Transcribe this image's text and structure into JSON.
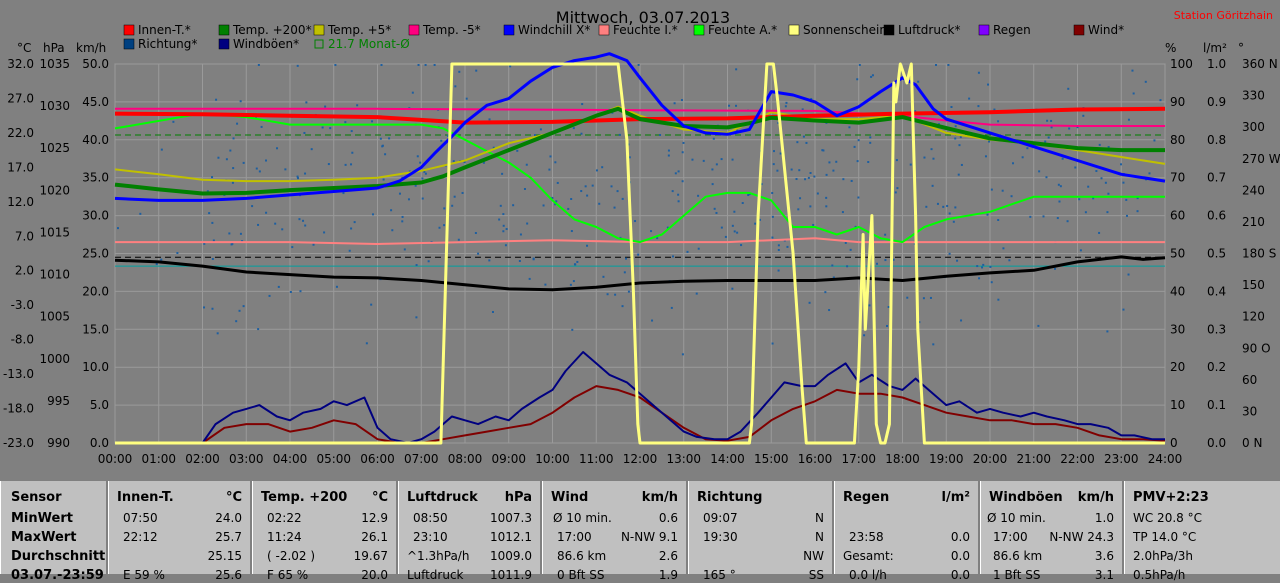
{
  "chart_data": {
    "type": "line",
    "title": "Mittwoch, 03.07.2013",
    "station": "Station Göritzhain",
    "x_ticks": [
      "00:00",
      "01:00",
      "02:00",
      "03:00",
      "04:00",
      "05:00",
      "06:00",
      "07:00",
      "08:00",
      "09:00",
      "10:00",
      "11:00",
      "12:00",
      "13:00",
      "14:00",
      "15:00",
      "16:00",
      "17:00",
      "18:00",
      "19:00",
      "20:00",
      "21:00",
      "22:00",
      "23:00",
      "24:00"
    ],
    "axis_units": {
      "temp": "°C",
      "pressure": "hPa",
      "wind": "km/h",
      "percent": "%",
      "rain": "l/m²",
      "dir": "°"
    },
    "temp_ticks": [
      "32.0",
      "27.0",
      "22.0",
      "17.0",
      "12.0",
      "7.0",
      "2.0",
      "-3.0",
      "-8.0",
      "-13.0",
      "-18.0",
      "-23.0"
    ],
    "pressure_ticks": [
      "1035",
      "1030",
      "1025",
      "1020",
      "1015",
      "1010",
      "1005",
      "1000",
      "995",
      "990"
    ],
    "wind_ticks": [
      "50.0",
      "45.0",
      "40.0",
      "35.0",
      "30.0",
      "25.0",
      "20.0",
      "15.0",
      "10.0",
      "5.0",
      "0.0"
    ],
    "percent_ticks": [
      "100",
      "90",
      "80",
      "70",
      "60",
      "50",
      "40",
      "30",
      "20",
      "10",
      "0"
    ],
    "rain_ticks": [
      "1.0",
      "0.9",
      "0.8",
      "0.7",
      "0.6",
      "0.5",
      "0.4",
      "0.3",
      "0.2",
      "0.1",
      "0.0"
    ],
    "dir_ticks": [
      "360 N",
      "330",
      "300",
      "270 W",
      "240",
      "210",
      "180 S",
      "150",
      "120",
      "90 O",
      "60",
      "30",
      "0 N"
    ],
    "temp_range": [
      -23,
      32
    ],
    "legend": [
      {
        "label": "Innen-T.*",
        "color": "#ff0000"
      },
      {
        "label": "Temp. +200*",
        "color": "#008000"
      },
      {
        "label": "Temp. +5*",
        "color": "#c0c000"
      },
      {
        "label": "Temp. -5*",
        "color": "#ff0080"
      },
      {
        "label": "Windchill X*",
        "color": "#0000ff"
      },
      {
        "label": "Feuchte I.*",
        "color": "#ff8080"
      },
      {
        "label": "Feuchte A.*",
        "color": "#00ff00"
      },
      {
        "label": "Sonnenschein",
        "color": "#ffff80"
      },
      {
        "label": "Luftdruck*",
        "color": "#000000"
      },
      {
        "label": "Regen",
        "color": "#8000ff"
      },
      {
        "label": "Wind*",
        "color": "#800000"
      },
      {
        "label": "Richtung*",
        "color": "#004080"
      },
      {
        "label": "Windböen*",
        "color": "#000080"
      },
      {
        "label": "21.7 Monat-Ø",
        "color": "#008000"
      }
    ],
    "series": [
      {
        "name": "Innen-T.*",
        "axis": "temp",
        "color": "#ff0000",
        "width": 4,
        "x": [
          0,
          2,
          4,
          6,
          8,
          10,
          12,
          14,
          16,
          18,
          20,
          22,
          24
        ],
        "y": [
          24.8,
          24.7,
          24.5,
          24.3,
          23.5,
          23.6,
          24.0,
          24.1,
          24.5,
          24.8,
          25.0,
          25.4,
          25.5
        ]
      },
      {
        "name": "Temp. +200*",
        "axis": "temp",
        "color": "#008000",
        "width": 4,
        "x": [
          0,
          1,
          2,
          3,
          4,
          5,
          6,
          7,
          7.5,
          8,
          9,
          10,
          11,
          11.5,
          12,
          13,
          14,
          14.5,
          15,
          16,
          17,
          18,
          19,
          20,
          21,
          22,
          23,
          24
        ],
        "y": [
          14.5,
          13.8,
          13.2,
          13.3,
          13.7,
          14.0,
          14.3,
          14.8,
          15.7,
          17.0,
          19.5,
          22.0,
          24.5,
          25.5,
          24.0,
          23.0,
          22.8,
          23.4,
          24.2,
          23.8,
          23.5,
          24.3,
          22.7,
          21.2,
          20.5,
          19.8,
          19.5,
          19.5
        ]
      },
      {
        "name": "Temp. +5*",
        "axis": "temp",
        "color": "#c0c000",
        "width": 2,
        "x": [
          0,
          1,
          2,
          3,
          4,
          5,
          6,
          7,
          8,
          9,
          10,
          11,
          11.5,
          12,
          13,
          14,
          15,
          16,
          17,
          18,
          19,
          20,
          21,
          22,
          23,
          24
        ],
        "y": [
          16.7,
          16.0,
          15.2,
          15.0,
          15.0,
          15.2,
          15.5,
          16.5,
          18.0,
          20.5,
          22.0,
          24.5,
          25.8,
          24.5,
          22.5,
          22.0,
          25.0,
          24.0,
          24.0,
          24.5,
          22.0,
          21.0,
          20.5,
          19.5,
          18.5,
          17.5
        ]
      },
      {
        "name": "Temp. -5*",
        "axis": "temp",
        "color": "#ff0080",
        "width": 2,
        "x": [
          0,
          6,
          12,
          16,
          18,
          19,
          20,
          22,
          24
        ],
        "y": [
          25.5,
          25.5,
          25.3,
          25.2,
          24.5,
          23.8,
          23.2,
          23.0,
          23.0
        ]
      },
      {
        "name": "Windchill X*",
        "axis": "temp",
        "color": "#0000ff",
        "width": 3,
        "x": [
          0,
          1,
          2,
          3,
          4,
          5,
          6,
          6.5,
          7,
          7.3,
          7.7,
          8,
          8.5,
          9,
          9.5,
          10,
          10.5,
          11,
          11.3,
          11.7,
          12,
          12.5,
          13,
          13.5,
          14,
          14.5,
          15,
          15.5,
          16,
          16.5,
          17,
          17.5,
          18,
          18.3,
          18.7,
          19,
          20,
          21,
          22,
          23,
          24
        ],
        "y": [
          12.5,
          12.2,
          12.2,
          12.5,
          13.0,
          13.5,
          14.0,
          15.0,
          17.0,
          19.0,
          21.5,
          23.5,
          26.0,
          27.0,
          29.5,
          31.5,
          32.5,
          33.0,
          33.5,
          32.5,
          30.0,
          26.0,
          23.0,
          22.0,
          21.8,
          22.5,
          28.0,
          27.5,
          26.5,
          24.5,
          25.8,
          28.0,
          30.0,
          29.0,
          25.5,
          24.0,
          22.0,
          20.0,
          18.0,
          16.0,
          15.0
        ]
      },
      {
        "name": "Feuchte I.*",
        "axis": "percent",
        "color": "#ff8080",
        "width": 2,
        "x": [
          0,
          4,
          6,
          8,
          10,
          12,
          14,
          16,
          17,
          18,
          20,
          24
        ],
        "y": [
          53,
          53,
          52.5,
          53,
          53.5,
          53,
          53,
          54,
          53,
          53,
          53,
          53
        ]
      },
      {
        "name": "Feuchte A.*",
        "axis": "percent",
        "color": "#00ff00",
        "width": 2,
        "x": [
          0,
          1,
          2,
          3,
          4,
          5,
          6,
          7,
          7.5,
          8,
          8.5,
          9,
          9.5,
          10,
          10.5,
          11,
          11.5,
          12,
          12.5,
          13,
          13.5,
          14,
          14.5,
          15,
          15.5,
          16,
          16.5,
          17,
          17.5,
          18,
          18.5,
          19,
          20,
          21,
          22,
          23,
          24
        ],
        "y": [
          83,
          85,
          87,
          86,
          84,
          84,
          84,
          84,
          83,
          80,
          77,
          74,
          70,
          64,
          59,
          57,
          54,
          53,
          55,
          60,
          65,
          66,
          66,
          64,
          57,
          57,
          55,
          57,
          54,
          53,
          57,
          59,
          61,
          65,
          65,
          65,
          65
        ]
      },
      {
        "name": "Luftdruck*",
        "axis": "pressure",
        "color": "#000000",
        "width": 3,
        "x": [
          0,
          1,
          2,
          3,
          4,
          5,
          6,
          7,
          8,
          9,
          10,
          11,
          12,
          13,
          14,
          15,
          16,
          17,
          18,
          19,
          20,
          21,
          22,
          23,
          23.5,
          24
        ],
        "y": [
          1011.7,
          1011.5,
          1011.0,
          1010.3,
          1010.0,
          1009.7,
          1009.6,
          1009.3,
          1008.8,
          1008.3,
          1008.2,
          1008.5,
          1009.0,
          1009.2,
          1009.3,
          1009.3,
          1009.3,
          1009.6,
          1009.3,
          1009.8,
          1010.2,
          1010.5,
          1011.5,
          1012.1,
          1011.8,
          1012.0
        ]
      },
      {
        "name": "Wind*",
        "axis": "wind",
        "color": "#800000",
        "width": 2,
        "x": [
          0,
          2,
          2.5,
          3,
          3.5,
          4,
          4.5,
          5,
          5.5,
          6,
          6.5,
          7,
          7.5,
          8,
          8.5,
          9,
          9.5,
          10,
          10.5,
          11,
          11.5,
          12,
          12.5,
          13,
          13.5,
          14,
          14.5,
          15,
          15.5,
          16,
          16.5,
          17,
          17.5,
          18,
          18.5,
          19,
          19.5,
          20,
          20.5,
          21,
          21.5,
          22,
          22.5,
          23,
          23.5,
          24
        ],
        "y": [
          0,
          0,
          2,
          2.5,
          2.5,
          1.5,
          2.0,
          3.0,
          2.5,
          0.5,
          0,
          0,
          0.5,
          1.0,
          1.5,
          2.0,
          2.5,
          4.0,
          6.0,
          7.5,
          7.0,
          6.0,
          4.0,
          2.0,
          0.5,
          0.3,
          0.8,
          3.0,
          4.5,
          5.5,
          7.0,
          6.5,
          6.5,
          6.0,
          5.0,
          4.0,
          3.5,
          3.0,
          3.0,
          2.5,
          2.5,
          2.0,
          1.0,
          0.5,
          0.5,
          0.3
        ]
      },
      {
        "name": "Windböen*",
        "axis": "wind",
        "color": "#000080",
        "width": 2,
        "x": [
          0,
          2,
          2.3,
          2.7,
          3,
          3.3,
          3.7,
          4,
          4.3,
          4.7,
          5,
          5.3,
          5.7,
          6,
          6.3,
          6.7,
          7,
          7.3,
          7.7,
          8,
          8.3,
          8.7,
          9,
          9.3,
          9.7,
          10,
          10.3,
          10.7,
          11,
          11.3,
          11.7,
          12,
          12.3,
          12.7,
          13,
          13.3,
          13.7,
          14,
          14.3,
          14.7,
          15,
          15.3,
          15.7,
          16,
          16.3,
          16.7,
          17,
          17.3,
          17.7,
          18,
          18.3,
          18.7,
          19,
          19.3,
          19.7,
          20,
          20.3,
          20.7,
          21,
          21.3,
          21.7,
          22,
          22.3,
          22.7,
          23,
          23.3,
          23.7,
          24
        ],
        "y": [
          0,
          0,
          2.5,
          4.0,
          4.5,
          5.0,
          3.5,
          3.0,
          4.0,
          4.5,
          5.5,
          5.0,
          6.0,
          2.0,
          0.5,
          0,
          0.5,
          1.5,
          3.5,
          3.0,
          2.5,
          3.5,
          3.0,
          4.5,
          6.0,
          7.0,
          9.5,
          12.0,
          10.5,
          9.0,
          8.0,
          6.5,
          5.0,
          3.0,
          1.5,
          0.8,
          0.5,
          0.5,
          1.5,
          4.0,
          6.0,
          8.0,
          7.5,
          7.5,
          9.0,
          10.5,
          8.0,
          9.0,
          7.5,
          7.0,
          8.5,
          6.5,
          5.0,
          5.5,
          4.0,
          4.5,
          4.0,
          3.5,
          4.0,
          3.5,
          3.0,
          2.5,
          2.5,
          2.0,
          1.0,
          1.0,
          0.5,
          0.5
        ]
      },
      {
        "name": "Sonnenschein",
        "axis": "percent",
        "color": "#ffff80",
        "width": 3,
        "x": [
          0,
          7.45,
          7.7,
          8,
          11,
          11.5,
          11.7,
          11.85,
          11.95,
          12,
          14.5,
          14.55,
          14.7,
          14.9,
          15.05,
          15.15,
          15.5,
          15.7,
          15.8,
          16,
          16.9,
          17.0,
          17.1,
          17.15,
          17.3,
          17.4,
          17.5,
          17.6,
          17.7,
          17.8,
          17.85,
          17.95,
          18.1,
          18.2,
          18.3,
          18.35,
          18.5,
          24
        ],
        "y": [
          0,
          0,
          100,
          100,
          100,
          100,
          80,
          40,
          5,
          0,
          0,
          5,
          60,
          100,
          100,
          90,
          50,
          15,
          0,
          0,
          0,
          20,
          55,
          30,
          60,
          5,
          0,
          0,
          5,
          95,
          90,
          100,
          95,
          100,
          60,
          30,
          0,
          0
        ]
      }
    ],
    "reference_lines": [
      {
        "axis": "temp",
        "value": 21.7,
        "color": "#008000",
        "dash": "6,4",
        "name": "21.7 Monat-Ø"
      },
      {
        "axis": "wind",
        "value": 24.5,
        "color": "#000000",
        "dash": "6,4"
      },
      {
        "axis": "pressure",
        "value": 1011.0,
        "color": "#00a0a0",
        "dash": ""
      }
    ],
    "direction_scatter": {
      "color": "#1e5fa0",
      "degrees_center": 240,
      "spread": 120
    }
  },
  "panel": {
    "row_labels": [
      "Sensor",
      "MinWert",
      "MaxWert",
      "Durchschnitt",
      "03.07.-23:59"
    ],
    "innen": {
      "title": "Innen-T.",
      "unit": "°C",
      "rows": [
        [
          "07:50",
          "24.0"
        ],
        [
          "22:12",
          "25.7"
        ],
        [
          "",
          "25.15"
        ],
        [
          "E 59 %",
          "25.6"
        ]
      ]
    },
    "temp": {
      "title": "Temp. +200",
      "unit": "°C",
      "rows": [
        [
          "02:22",
          "12.9"
        ],
        [
          "11:24",
          "26.1"
        ],
        [
          "( -2.02 )",
          "19.67"
        ],
        [
          "F 65 %",
          "20.0"
        ]
      ]
    },
    "luft": {
      "title": "Luftdruck",
      "unit": "hPa",
      "rows": [
        [
          "08:50",
          "1007.3"
        ],
        [
          "23:10",
          "1012.1"
        ],
        [
          "^1.3hPa/h",
          "1009.0"
        ],
        [
          "Luftdruck",
          "1011.9"
        ]
      ]
    },
    "wind": {
      "title": "Wind",
      "unit": "km/h",
      "rows": [
        [
          "Ø 10 min.",
          "",
          "0.6"
        ],
        [
          "17:00",
          "N-NW 9.1",
          ""
        ],
        [
          "86.6 km",
          "",
          "2.6"
        ],
        [
          "0 Bft SS",
          "",
          "1.9"
        ]
      ]
    },
    "richt": {
      "title": "Richtung",
      "rows": [
        [
          "09:07",
          "N"
        ],
        [
          "19:30",
          "N"
        ],
        [
          "",
          "NW"
        ],
        [
          "165 °",
          "SS"
        ]
      ]
    },
    "regen": {
      "title": "Regen",
      "unit": "l/m²",
      "rows": [
        [
          "",
          ""
        ],
        [
          "23:58",
          "0.0"
        ],
        [
          "Gesamt:",
          "0.0"
        ],
        [
          "0.0 l/h",
          "0.0"
        ]
      ]
    },
    "boen": {
      "title": "Windböen",
      "unit": "km/h",
      "rows": [
        [
          "Ø 10 min.",
          "",
          "1.0"
        ],
        [
          "17:00",
          "N-NW 24.3",
          ""
        ],
        [
          "86.6 km",
          "",
          "3.6"
        ],
        [
          "1 Bft SS",
          "",
          "3.1"
        ]
      ]
    },
    "pmv": {
      "title": "PMV+2:23",
      "rows": [
        "WC 20.8 °C",
        "TP 14.0 °C",
        "2.0hPa/3h",
        "0.5hPa/h"
      ]
    }
  }
}
